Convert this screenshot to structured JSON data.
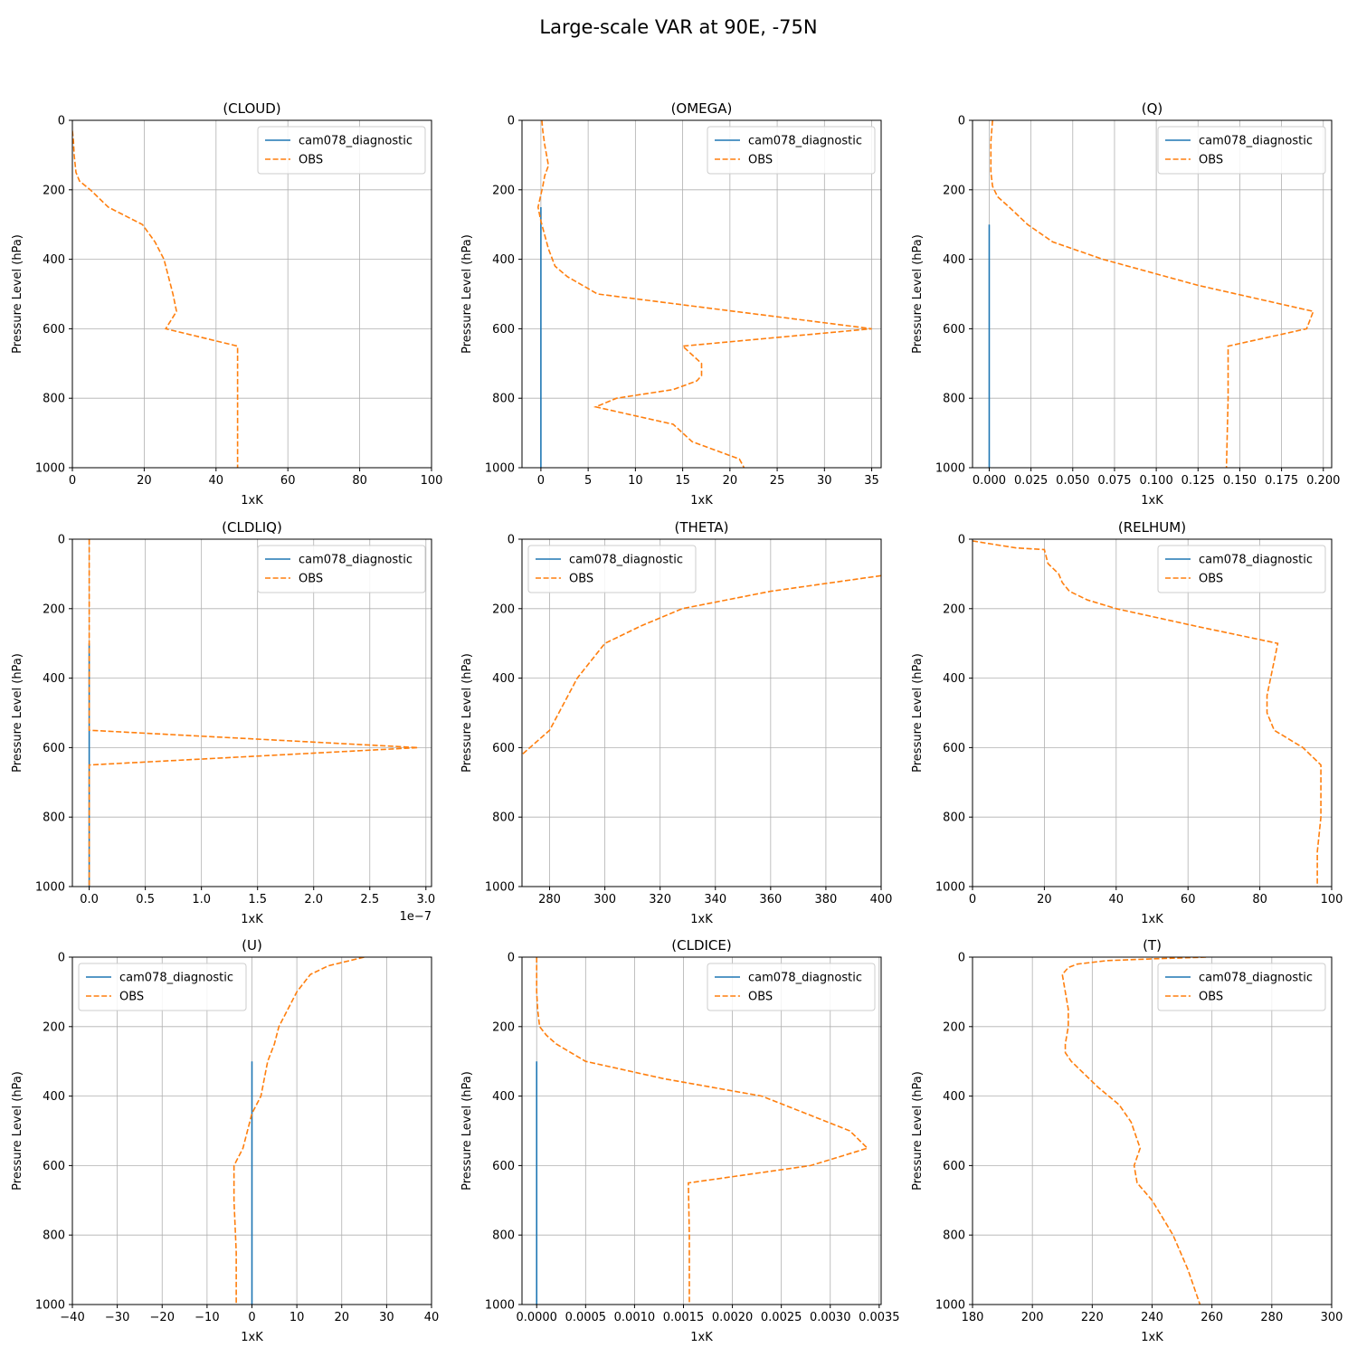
{
  "figure": {
    "title": "Large-scale VAR at 90E, -75N"
  },
  "colors": {
    "model": "#1f77b4",
    "obs": "#ff7f0e",
    "grid": "#b0b0b0",
    "axis": "#000000"
  },
  "legend_labels": {
    "model": "cam078_diagnostic",
    "obs": "OBS"
  },
  "chart_data": [
    {
      "type": "line",
      "title": "(CLOUD)",
      "xlabel": "1xK",
      "ylabel": "Pressure Level (hPa)",
      "xlim": [
        0,
        100
      ],
      "ylim": [
        1000,
        0
      ],
      "y_inverted": true,
      "xticks": [
        0,
        20,
        40,
        60,
        80,
        100
      ],
      "xtick_labels": [
        "0",
        "20",
        "40",
        "60",
        "80",
        "100"
      ],
      "yticks": [
        0,
        200,
        400,
        600,
        800,
        1000
      ],
      "ytick_labels": [
        "0",
        "200",
        "400",
        "600",
        "800",
        "1000"
      ],
      "x_multiplier": "",
      "grid": true,
      "legend_placement": "top-right",
      "series": [
        {
          "name": "cam078_diagnostic",
          "style": "solid",
          "x": [],
          "y": []
        },
        {
          "name": "OBS",
          "style": "dashed",
          "x": [
            0,
            0.3,
            0.5,
            1.0,
            2.0,
            5.0,
            10.0,
            19.5,
            23.0,
            25.5,
            28.0,
            29.0,
            26.0,
            46.0,
            46.0,
            46.0,
            46.0
          ],
          "y": [
            30,
            60,
            100,
            150,
            175,
            200,
            250,
            300,
            350,
            400,
            500,
            550,
            600,
            650,
            750,
            850,
            1000
          ]
        }
      ]
    },
    {
      "type": "line",
      "title": "(OMEGA)",
      "xlabel": "1xK",
      "ylabel": "Pressure Level (hPa)",
      "xlim": [
        -2,
        36
      ],
      "ylim": [
        1000,
        0
      ],
      "y_inverted": true,
      "xticks": [
        0,
        5,
        10,
        15,
        20,
        25,
        30,
        35
      ],
      "xtick_labels": [
        "0",
        "5",
        "10",
        "15",
        "20",
        "25",
        "30",
        "35"
      ],
      "yticks": [
        0,
        200,
        400,
        600,
        800,
        1000
      ],
      "ytick_labels": [
        "0",
        "200",
        "400",
        "600",
        "800",
        "1000"
      ],
      "x_multiplier": "",
      "grid": true,
      "legend_placement": "top-right",
      "series": [
        {
          "name": "cam078_diagnostic",
          "style": "solid",
          "x": [
            0,
            0
          ],
          "y": [
            250,
            1000
          ]
        },
        {
          "name": "OBS",
          "style": "dashed",
          "x": [
            0.1,
            0.2,
            0.3,
            0.4,
            0.6,
            0.8,
            0.4,
            0.2,
            -0.3,
            0.0,
            0.4,
            0.8,
            1.5,
            2.8,
            6.0,
            35.0,
            15.0,
            17.0,
            17.0,
            16.5,
            14.0,
            8.0,
            5.8,
            14.0,
            16.0,
            21.0,
            21.5
          ],
          "y": [
            0,
            30,
            50,
            70,
            100,
            130,
            160,
            190,
            250,
            290,
            330,
            370,
            420,
            450,
            500,
            600,
            650,
            700,
            735,
            750,
            775,
            800,
            825,
            875,
            925,
            975,
            1000
          ]
        }
      ]
    },
    {
      "type": "line",
      "title": "(Q)",
      "xlabel": "1xK",
      "ylabel": "Pressure Level (hPa)",
      "xlim": [
        -0.01,
        0.205
      ],
      "ylim": [
        1000,
        0
      ],
      "y_inverted": true,
      "xticks": [
        0.0,
        0.025,
        0.05,
        0.075,
        0.1,
        0.125,
        0.15,
        0.175,
        0.2
      ],
      "xtick_labels": [
        "0.000",
        "0.025",
        "0.050",
        "0.075",
        "0.100",
        "0.125",
        "0.150",
        "0.175",
        "0.200"
      ],
      "yticks": [
        0,
        200,
        400,
        600,
        800,
        1000
      ],
      "ytick_labels": [
        "0",
        "200",
        "400",
        "600",
        "800",
        "1000"
      ],
      "x_multiplier": "",
      "grid": true,
      "legend_placement": "top-right",
      "series": [
        {
          "name": "cam078_diagnostic",
          "style": "solid",
          "x": [
            0,
            0
          ],
          "y": [
            300,
            1000
          ]
        },
        {
          "name": "OBS",
          "style": "dashed",
          "x": [
            0.002,
            0.0015,
            0.001,
            0.001,
            0.001,
            0.002,
            0.005,
            0.012,
            0.023,
            0.038,
            0.068,
            0.125,
            0.194,
            0.19,
            0.143,
            0.143,
            0.142
          ],
          "y": [
            0,
            30,
            60,
            100,
            150,
            190,
            220,
            250,
            300,
            350,
            400,
            475,
            550,
            600,
            650,
            800,
            1000
          ]
        }
      ]
    },
    {
      "type": "line",
      "title": "(CLDLIQ)",
      "xlabel": "1xK",
      "ylabel": "Pressure Level (hPa)",
      "xlim": [
        -0.15,
        3.05
      ],
      "ylim": [
        1000,
        0
      ],
      "y_inverted": true,
      "xticks": [
        0.0,
        0.5,
        1.0,
        1.5,
        2.0,
        2.5,
        3.0
      ],
      "xtick_labels": [
        "0.0",
        "0.5",
        "1.0",
        "1.5",
        "2.0",
        "2.5",
        "3.0"
      ],
      "yticks": [
        0,
        200,
        400,
        600,
        800,
        1000
      ],
      "ytick_labels": [
        "0",
        "200",
        "400",
        "600",
        "800",
        "1000"
      ],
      "x_multiplier": "1e−7",
      "grid": true,
      "legend_placement": "top-right",
      "series": [
        {
          "name": "cam078_diagnostic",
          "style": "solid",
          "x": [
            0,
            0
          ],
          "y": [
            300,
            1000
          ]
        },
        {
          "name": "OBS",
          "style": "dashed",
          "x": [
            0,
            0,
            0,
            0,
            0,
            2.93,
            0,
            0,
            0
          ],
          "y": [
            0,
            200,
            400,
            500,
            550,
            600,
            650,
            800,
            1000
          ]
        }
      ]
    },
    {
      "type": "line",
      "title": "(THETA)",
      "xlabel": "1xK",
      "ylabel": "Pressure Level (hPa)",
      "xlim": [
        270,
        400
      ],
      "ylim": [
        1000,
        0
      ],
      "y_inverted": true,
      "xticks": [
        280,
        300,
        320,
        340,
        360,
        380,
        400
      ],
      "xtick_labels": [
        "280",
        "300",
        "320",
        "340",
        "360",
        "380",
        "400"
      ],
      "yticks": [
        0,
        200,
        400,
        600,
        800,
        1000
      ],
      "ytick_labels": [
        "0",
        "200",
        "400",
        "600",
        "800",
        "1000"
      ],
      "x_multiplier": "",
      "grid": true,
      "legend_placement": "top-left",
      "series": [
        {
          "name": "cam078_diagnostic",
          "style": "solid",
          "x": [],
          "y": []
        },
        {
          "name": "OBS",
          "style": "dashed",
          "x": [
            400,
            360,
            328,
            313,
            300,
            295,
            290,
            285,
            280,
            270
          ],
          "y": [
            105,
            150,
            200,
            250,
            300,
            350,
            400,
            475,
            550,
            620
          ]
        }
      ]
    },
    {
      "type": "line",
      "title": "(RELHUM)",
      "xlabel": "1xK",
      "ylabel": "Pressure Level (hPa)",
      "xlim": [
        0,
        100
      ],
      "ylim": [
        1000,
        0
      ],
      "y_inverted": true,
      "xticks": [
        0,
        20,
        40,
        60,
        80,
        100
      ],
      "xtick_labels": [
        "0",
        "20",
        "40",
        "60",
        "80",
        "100"
      ],
      "yticks": [
        0,
        200,
        400,
        600,
        800,
        1000
      ],
      "ytick_labels": [
        "0",
        "200",
        "400",
        "600",
        "800",
        "1000"
      ],
      "x_multiplier": "",
      "grid": true,
      "legend_placement": "top-right",
      "series": [
        {
          "name": "cam078_diagnostic",
          "style": "solid",
          "x": [],
          "y": []
        },
        {
          "name": "OBS",
          "style": "dashed",
          "x": [
            0,
            12,
            20,
            21,
            24,
            25,
            27,
            32,
            40,
            62,
            85,
            83,
            82,
            82,
            83,
            84,
            92,
            97,
            97,
            97,
            96,
            96
          ],
          "y": [
            5,
            25,
            30,
            70,
            100,
            125,
            150,
            175,
            200,
            250,
            300,
            400,
            450,
            500,
            525,
            550,
            600,
            650,
            750,
            800,
            900,
            1000
          ]
        }
      ]
    },
    {
      "type": "line",
      "title": "(U)",
      "xlabel": "1xK",
      "ylabel": "Pressure Level (hPa)",
      "xlim": [
        -40,
        40
      ],
      "ylim": [
        1000,
        0
      ],
      "y_inverted": true,
      "xticks": [
        -40,
        -30,
        -20,
        -10,
        0,
        10,
        20,
        30,
        40
      ],
      "xtick_labels": [
        "−40",
        "−30",
        "−20",
        "−10",
        "0",
        "10",
        "20",
        "30",
        "40"
      ],
      "yticks": [
        0,
        200,
        400,
        600,
        800,
        1000
      ],
      "ytick_labels": [
        "0",
        "200",
        "400",
        "600",
        "800",
        "1000"
      ],
      "x_multiplier": "",
      "grid": true,
      "legend_placement": "top-left",
      "series": [
        {
          "name": "cam078_diagnostic",
          "style": "solid",
          "x": [
            0,
            0
          ],
          "y": [
            300,
            1000
          ]
        },
        {
          "name": "OBS",
          "style": "dashed",
          "x": [
            25,
            17,
            13,
            10,
            8,
            6,
            5,
            3.5,
            2,
            0,
            -2,
            -4,
            -4,
            -3.5,
            -3.5
          ],
          "y": [
            0,
            25,
            50,
            100,
            150,
            200,
            250,
            300,
            400,
            450,
            550,
            600,
            700,
            850,
            1000
          ]
        }
      ]
    },
    {
      "type": "line",
      "title": "(CLDICE)",
      "xlabel": "1xK",
      "ylabel": "Pressure Level (hPa)",
      "xlim": [
        -0.00015,
        0.00352
      ],
      "ylim": [
        1000,
        0
      ],
      "y_inverted": true,
      "xticks": [
        0.0,
        0.0005,
        0.001,
        0.0015,
        0.002,
        0.0025,
        0.003,
        0.0035
      ],
      "xtick_labels": [
        "0.0000",
        "0.0005",
        "0.0010",
        "0.0015",
        "0.0020",
        "0.0025",
        "0.0030",
        "0.0035"
      ],
      "yticks": [
        0,
        200,
        400,
        600,
        800,
        1000
      ],
      "ytick_labels": [
        "0",
        "200",
        "400",
        "600",
        "800",
        "1000"
      ],
      "x_multiplier": "",
      "grid": true,
      "legend_placement": "top-right",
      "series": [
        {
          "name": "cam078_diagnostic",
          "style": "solid",
          "x": [
            0,
            0
          ],
          "y": [
            300,
            1000
          ]
        },
        {
          "name": "OBS",
          "style": "dashed",
          "x": [
            0.0,
            0.0,
            0.0,
            1e-05,
            3e-05,
            0.0001,
            0.0002,
            0.0005,
            0.0013,
            0.0023,
            0.0032,
            0.00338,
            0.0028,
            0.00155,
            0.00156,
            0.00156
          ],
          "y": [
            0,
            50,
            100,
            150,
            200,
            225,
            250,
            300,
            350,
            400,
            500,
            550,
            600,
            650,
            800,
            1000
          ]
        }
      ]
    },
    {
      "type": "line",
      "title": "(T)",
      "xlabel": "1xK",
      "ylabel": "Pressure Level (hPa)",
      "xlim": [
        180,
        300
      ],
      "ylim": [
        1000,
        0
      ],
      "y_inverted": true,
      "xticks": [
        180,
        200,
        220,
        240,
        260,
        280,
        300
      ],
      "xtick_labels": [
        "180",
        "200",
        "220",
        "240",
        "260",
        "280",
        "300"
      ],
      "yticks": [
        0,
        200,
        400,
        600,
        800,
        1000
      ],
      "ytick_labels": [
        "0",
        "200",
        "400",
        "600",
        "800",
        "1000"
      ],
      "x_multiplier": "",
      "grid": true,
      "legend_placement": "top-right",
      "series": [
        {
          "name": "cam078_diagnostic",
          "style": "solid",
          "x": [],
          "y": []
        },
        {
          "name": "OBS",
          "style": "dashed",
          "x": [
            258,
            240,
            225,
            215,
            212,
            210,
            211,
            212,
            212,
            211,
            211,
            213,
            216,
            222,
            229,
            233,
            236,
            234,
            235,
            240,
            247,
            252,
            256
          ],
          "y": [
            0,
            5,
            10,
            20,
            30,
            50,
            100,
            150,
            200,
            250,
            275,
            300,
            325,
            375,
            425,
            475,
            550,
            600,
            650,
            700,
            800,
            900,
            1000
          ]
        }
      ]
    }
  ]
}
